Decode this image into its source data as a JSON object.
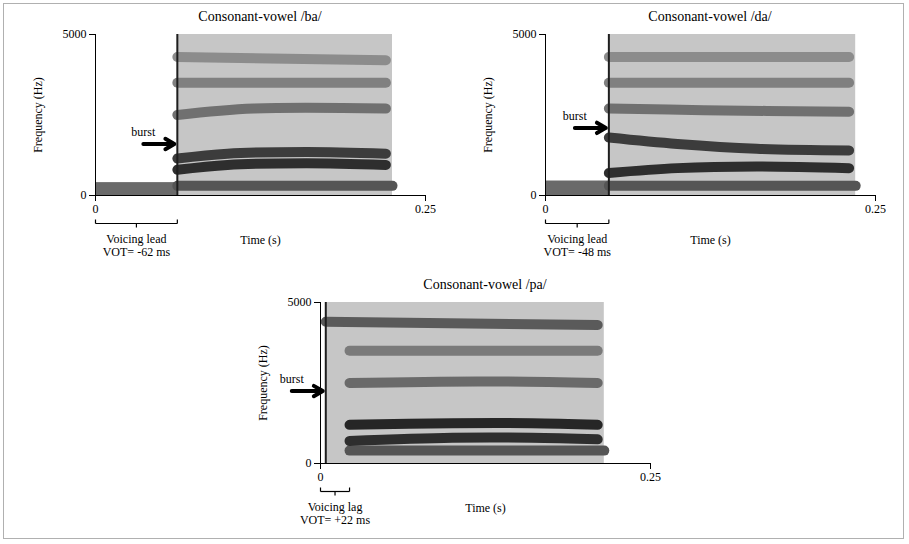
{
  "chart_data": [
    {
      "type": "spectrogram",
      "title": "Consonant-vowel /ba/",
      "x_label": "Time (s)",
      "y_label": "Frequency (Hz)",
      "xlim": [
        0,
        0.25
      ],
      "xticks": [
        0,
        0.25
      ],
      "ylim": [
        0,
        5000
      ],
      "yticks": [
        0,
        5000
      ],
      "voicing": {
        "start": 0,
        "end": 0.062,
        "low": 0,
        "high": 400
      },
      "vowel": {
        "start": 0.062,
        "end": 0.225
      },
      "series": [
        {
          "color": "#555555",
          "x": [
            0.062,
            0.225
          ],
          "values": [
            300,
            300
          ]
        },
        {
          "color": "#2e2e2e",
          "x": [
            0.062,
            0.1,
            0.16,
            0.22
          ],
          "values": [
            800,
            950,
            1000,
            950
          ]
        },
        {
          "color": "#3c3c3c",
          "x": [
            0.062,
            0.1,
            0.16,
            0.22
          ],
          "values": [
            1150,
            1300,
            1350,
            1300
          ]
        },
        {
          "color": "#707070",
          "x": [
            0.062,
            0.12,
            0.22
          ],
          "values": [
            2500,
            2700,
            2700
          ]
        },
        {
          "color": "#808080",
          "x": [
            0.062,
            0.22
          ],
          "values": [
            3500,
            3500
          ]
        },
        {
          "color": "#8c8c8c",
          "x": [
            0.062,
            0.22
          ],
          "values": [
            4300,
            4200
          ]
        }
      ],
      "burst": {
        "text": "burst",
        "x": 0.062,
        "y": 1600
      },
      "bracket": {
        "from": 0,
        "to": 0.062,
        "label": "Voicing lead",
        "text": "VOT= -62 ms"
      }
    },
    {
      "type": "spectrogram",
      "title": "Consonant-vowel /da/",
      "x_label": "Time (s)",
      "y_label": "Frequency (Hz)",
      "xlim": [
        0,
        0.25
      ],
      "xticks": [
        0,
        0.25
      ],
      "ylim": [
        0,
        5000
      ],
      "yticks": [
        0,
        5000
      ],
      "voicing": {
        "start": 0,
        "end": 0.048,
        "low": 0,
        "high": 450
      },
      "vowel": {
        "start": 0.048,
        "end": 0.235
      },
      "series": [
        {
          "color": "#555555",
          "x": [
            0.048,
            0.235
          ],
          "values": [
            300,
            300
          ]
        },
        {
          "color": "#2e2e2e",
          "x": [
            0.048,
            0.1,
            0.16,
            0.23
          ],
          "values": [
            700,
            850,
            900,
            850
          ]
        },
        {
          "color": "#3c3c3c",
          "x": [
            0.048,
            0.1,
            0.16,
            0.23
          ],
          "values": [
            1800,
            1600,
            1450,
            1400
          ]
        },
        {
          "color": "#707070",
          "x": [
            0.048,
            0.12,
            0.23
          ],
          "values": [
            2700,
            2650,
            2600
          ]
        },
        {
          "color": "#808080",
          "x": [
            0.048,
            0.23
          ],
          "values": [
            3500,
            3500
          ]
        },
        {
          "color": "#8c8c8c",
          "x": [
            0.048,
            0.23
          ],
          "values": [
            4300,
            4300
          ]
        }
      ],
      "burst": {
        "text": "burst",
        "x": 0.048,
        "y": 2100
      },
      "bracket": {
        "from": 0,
        "to": 0.048,
        "label": "Voicing lead",
        "text": "VOT= -48 ms"
      }
    },
    {
      "type": "spectrogram",
      "title": "Consonant-vowel /pa/",
      "x_label": "Time (s)",
      "y_label": "Frequency (Hz)",
      "xlim": [
        0,
        0.25
      ],
      "xticks": [
        0,
        0.25
      ],
      "ylim": [
        0,
        5000
      ],
      "yticks": [
        0,
        5000
      ],
      "voicing": null,
      "vowel": {
        "start": 0.004,
        "end": 0.215
      },
      "series": [
        {
          "color": "#555555",
          "x": [
            0.022,
            0.215
          ],
          "values": [
            400,
            400
          ]
        },
        {
          "color": "#2e2e2e",
          "x": [
            0.022,
            0.1,
            0.16,
            0.21
          ],
          "values": [
            700,
            800,
            800,
            750
          ]
        },
        {
          "color": "#262626",
          "x": [
            0.022,
            0.1,
            0.16,
            0.21
          ],
          "values": [
            1200,
            1250,
            1250,
            1200
          ]
        },
        {
          "color": "#6a6a6a",
          "x": [
            0.022,
            0.12,
            0.21
          ],
          "values": [
            2500,
            2550,
            2500
          ]
        },
        {
          "color": "#7a7a7a",
          "x": [
            0.022,
            0.21
          ],
          "values": [
            3500,
            3500
          ]
        },
        {
          "color": "#5a5a5a",
          "x": [
            0.004,
            0.21
          ],
          "values": [
            4400,
            4300
          ]
        }
      ],
      "burst": {
        "text": "burst",
        "x": 0.004,
        "y": 2250
      },
      "bracket": {
        "from": 0,
        "to": 0.022,
        "label": "Voicing lag",
        "text": "VOT= +22 ms"
      }
    }
  ]
}
